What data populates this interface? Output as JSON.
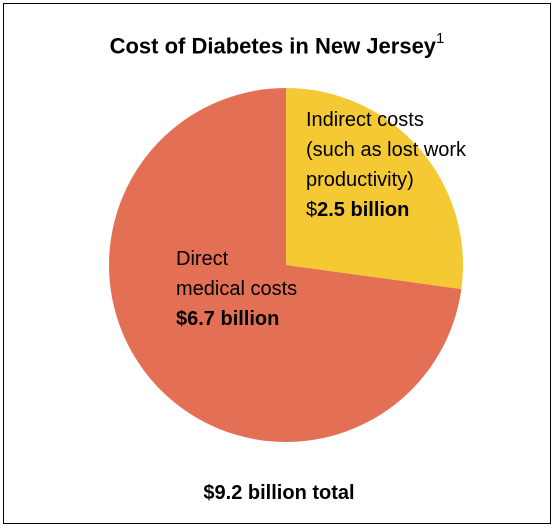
{
  "chart_data": {
    "type": "pie",
    "title": "Cost of Diabetes in New Jersey",
    "title_footnote": "1",
    "slices": [
      {
        "label_lines": [
          "Indirect costs",
          "(such as lost work",
          "productivity)"
        ],
        "value_prefix": "$",
        "value_text": "2.5 billion",
        "value": 2.5,
        "color": "#f4c934"
      },
      {
        "label_lines": [
          "Direct",
          "medical costs"
        ],
        "value_prefix": "",
        "value_text": "$6.7 billion",
        "value": 6.7,
        "color": "#e37054"
      }
    ],
    "total_label": "$9.2 billion total",
    "legend": "none"
  }
}
